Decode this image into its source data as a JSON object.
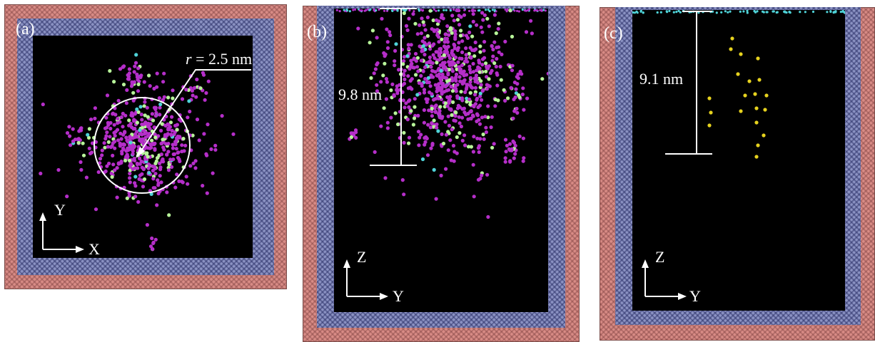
{
  "panels": {
    "a": {
      "label": "(a)",
      "annotation_r": "r",
      "annotation_rest": " = 2.5 nm",
      "axis_h": "X",
      "axis_v": "Y"
    },
    "b": {
      "label": "(b)",
      "annotation": "9.8 nm",
      "axis_h": "Y",
      "axis_v": "Z"
    },
    "c": {
      "label": "(c)",
      "annotation": "9.1 nm",
      "axis_h": "Y",
      "axis_v": "Z"
    }
  },
  "colors": {
    "outer_layer": "#d98c86",
    "middle_layer": "#8c93c4",
    "background": "#000000",
    "atom_magenta": "#b52ec9",
    "atom_green": "#b8f59a",
    "atom_cyan": "#4fd3d8",
    "atom_yellow": "#e6d21e"
  }
}
